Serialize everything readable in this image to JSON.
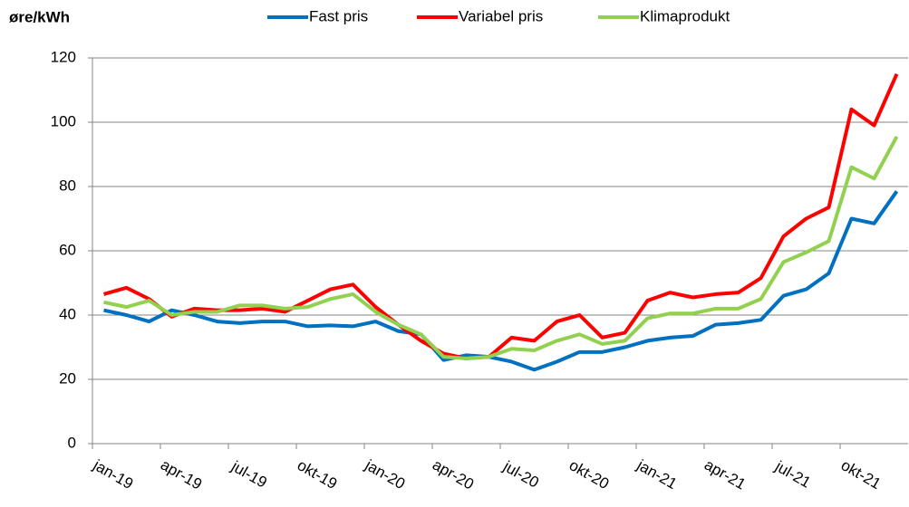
{
  "chart_data": {
    "type": "line",
    "y_label": "øre/kWh",
    "categories": [
      "jan-19",
      null,
      null,
      "apr-19",
      null,
      null,
      "jul-19",
      null,
      null,
      "okt-19",
      null,
      null,
      "jan-20",
      null,
      null,
      "apr-20",
      null,
      null,
      "jul-20",
      null,
      null,
      "okt-20",
      null,
      null,
      "jan-21",
      null,
      null,
      "apr-21",
      null,
      null,
      "jul-21",
      null,
      null,
      "okt-21",
      null,
      null
    ],
    "series": [
      {
        "name": "Fast pris",
        "color": "#0070c0",
        "values": [
          41.5,
          40,
          38,
          41.5,
          40,
          38,
          37.5,
          38,
          38,
          36.5,
          36.8,
          36.5,
          38,
          35,
          34,
          26,
          27.5,
          27,
          25.5,
          23,
          25.5,
          28.5,
          28.5,
          30,
          32,
          33,
          33.5,
          37,
          37.5,
          38.5,
          46,
          48,
          53,
          70,
          68.5,
          78.5
        ]
      },
      {
        "name": "Variabel pris",
        "color": "#ff0000",
        "values": [
          46.5,
          48.5,
          45,
          39.5,
          42,
          41.5,
          41.5,
          42,
          41,
          44.5,
          48,
          49.5,
          42.5,
          37,
          32,
          28,
          26.5,
          27,
          33,
          32,
          38,
          40,
          33,
          34.5,
          44.5,
          47,
          45.5,
          46.5,
          47,
          51.5,
          64.5,
          70,
          73.5,
          104,
          99,
          115
        ]
      },
      {
        "name": "Klimaprodukt",
        "color": "#92d050",
        "values": [
          44,
          42.5,
          44.5,
          40,
          41,
          41,
          43,
          43,
          42,
          42.5,
          45,
          46.5,
          41,
          37,
          34,
          27,
          26.5,
          27,
          29.5,
          29,
          32,
          34,
          31,
          32,
          39,
          40.5,
          40.5,
          42,
          42,
          45,
          56.5,
          59.5,
          63,
          86,
          82.5,
          95.5
        ]
      }
    ],
    "ylim": [
      0,
      120
    ],
    "yticks": [
      0,
      20,
      40,
      60,
      80,
      100,
      120
    ],
    "grid": true,
    "legend": "top"
  }
}
